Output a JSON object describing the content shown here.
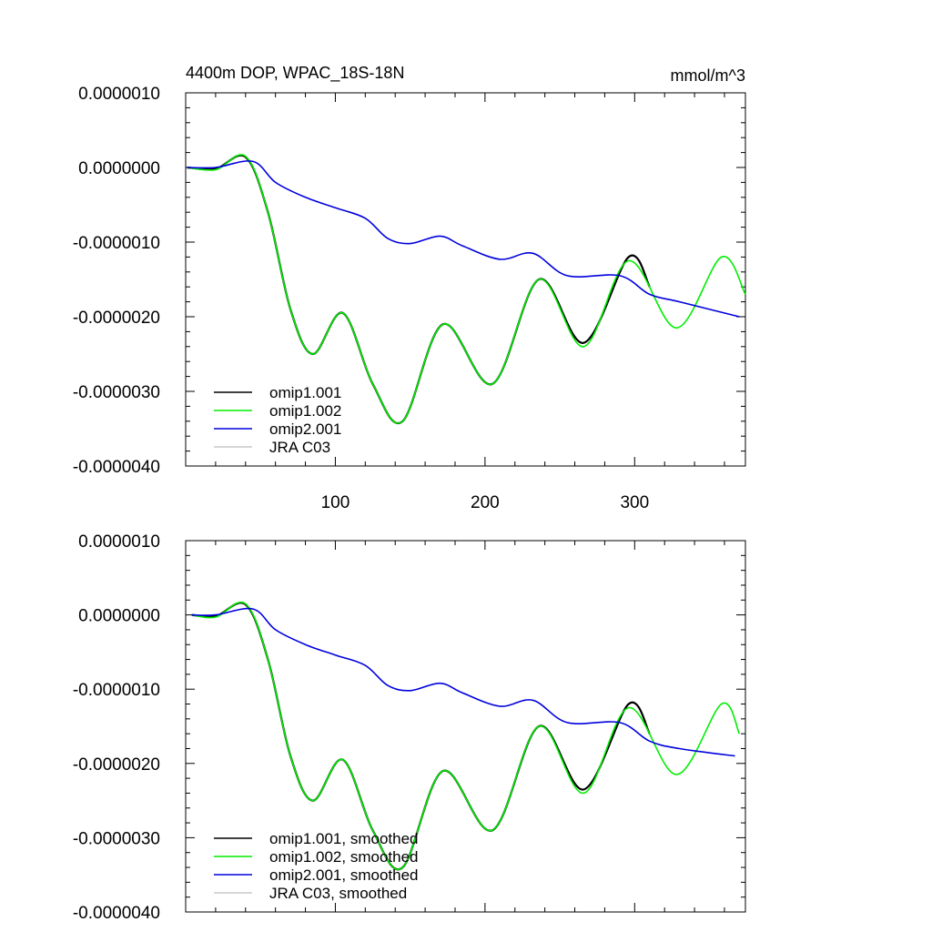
{
  "chart_data": [
    {
      "type": "line",
      "title": "4400m DOP, WPAC_18S-18N",
      "units": "mmol/m^3",
      "xlabel": "",
      "ylabel": "",
      "xlim": [
        0,
        374
      ],
      "ylim": [
        -4e-06,
        1e-06
      ],
      "xticks": [
        100,
        200,
        300
      ],
      "xtick_labels": [
        "100",
        "200",
        "300"
      ],
      "yticks": [
        1e-06,
        0,
        -1e-06,
        -2e-06,
        -3e-06,
        -4e-06
      ],
      "ytick_labels": [
        "0.0000010",
        "0.0000000",
        "-0.0000010",
        "-0.0000020",
        "-0.0000030",
        "-0.0000040"
      ],
      "legend": [
        "omip1.001",
        "omip1.002",
        "omip2.001",
        "JRA C03"
      ],
      "legend_position": "bottom-left",
      "series": [
        {
          "name": "omip1.001",
          "color": "#000000",
          "x": [
            1,
            20,
            40,
            55,
            70,
            85,
            105,
            125,
            145,
            172,
            205,
            236,
            266,
            296,
            310
          ],
          "y": [
            0,
            -2e-08,
            1.4e-07,
            -6e-07,
            -1.9e-06,
            -2.5e-06,
            -1.95e-06,
            -2.9e-06,
            -3.4e-06,
            -2.1e-06,
            -2.9e-06,
            -1.5e-06,
            -2.35e-06,
            -1.2e-06,
            -1.6e-06
          ]
        },
        {
          "name": "omip1.002",
          "color": "#00ee00",
          "x": [
            1,
            20,
            40,
            55,
            70,
            85,
            105,
            125,
            145,
            172,
            205,
            236,
            266,
            296,
            328,
            358,
            374
          ],
          "y": [
            0,
            -3e-08,
            1.5e-07,
            -6e-07,
            -1.9e-06,
            -2.5e-06,
            -1.95e-06,
            -2.9e-06,
            -3.4e-06,
            -2.1e-06,
            -2.9e-06,
            -1.5e-06,
            -2.4e-06,
            -1.25e-06,
            -2.15e-06,
            -1.2e-06,
            -1.7e-06
          ]
        },
        {
          "name": "omip2.001",
          "color": "#0000dd",
          "x": [
            1,
            20,
            45,
            60,
            80,
            100,
            120,
            135,
            150,
            170,
            185,
            210,
            232,
            255,
            290,
            310,
            330,
            370
          ],
          "y": [
            0,
            0,
            8e-08,
            -2e-07,
            -4e-07,
            -5.4e-07,
            -6.8e-07,
            -9.5e-07,
            -1.02e-06,
            -9.2e-07,
            -1.05e-06,
            -1.23e-06,
            -1.15e-06,
            -1.45e-06,
            -1.45e-06,
            -1.7e-06,
            -1.8e-06,
            -2e-06
          ]
        },
        {
          "name": "JRA C03",
          "color": "#c8c8c8",
          "x": [],
          "y": []
        }
      ]
    },
    {
      "type": "line",
      "title": "",
      "units": "",
      "xlabel": "",
      "ylabel": "",
      "xlim": [
        0,
        374
      ],
      "ylim": [
        -4e-06,
        1e-06
      ],
      "xticks": [
        100,
        200,
        300
      ],
      "xtick_labels": [],
      "yticks": [
        1e-06,
        0,
        -1e-06,
        -2e-06,
        -3e-06,
        -4e-06
      ],
      "ytick_labels": [
        "0.0000010",
        "0.0000000",
        "-0.0000010",
        "-0.0000020",
        "-0.0000030",
        "-0.0000040"
      ],
      "legend": [
        "omip1.001, smoothed",
        "omip1.002, smoothed",
        "omip2.001, smoothed",
        "JRA C03, smoothed"
      ],
      "legend_position": "bottom-left",
      "series": [
        {
          "name": "omip1.001, smoothed",
          "color": "#000000",
          "x": [
            4,
            20,
            40,
            55,
            70,
            85,
            105,
            125,
            145,
            172,
            205,
            236,
            266,
            296,
            310
          ],
          "y": [
            0,
            -2e-08,
            1.4e-07,
            -6e-07,
            -1.9e-06,
            -2.5e-06,
            -1.95e-06,
            -2.9e-06,
            -3.4e-06,
            -2.1e-06,
            -2.9e-06,
            -1.5e-06,
            -2.35e-06,
            -1.2e-06,
            -1.6e-06
          ]
        },
        {
          "name": "omip1.002, smoothed",
          "color": "#00ee00",
          "x": [
            4,
            20,
            40,
            55,
            70,
            85,
            105,
            125,
            145,
            172,
            205,
            236,
            266,
            296,
            328,
            358,
            370
          ],
          "y": [
            0,
            -3e-08,
            1.5e-07,
            -6e-07,
            -1.9e-06,
            -2.5e-06,
            -1.95e-06,
            -2.9e-06,
            -3.4e-06,
            -2.1e-06,
            -2.9e-06,
            -1.5e-06,
            -2.4e-06,
            -1.25e-06,
            -2.15e-06,
            -1.2e-06,
            -1.6e-06
          ]
        },
        {
          "name": "omip2.001, smoothed",
          "color": "#0000dd",
          "x": [
            4,
            20,
            45,
            60,
            80,
            100,
            120,
            135,
            150,
            170,
            185,
            210,
            232,
            255,
            290,
            310,
            330,
            367
          ],
          "y": [
            0,
            0,
            8e-08,
            -2e-07,
            -4e-07,
            -5.4e-07,
            -6.8e-07,
            -9.5e-07,
            -1.02e-06,
            -9.2e-07,
            -1.05e-06,
            -1.23e-06,
            -1.15e-06,
            -1.45e-06,
            -1.45e-06,
            -1.7e-06,
            -1.8e-06,
            -1.9e-06
          ]
        },
        {
          "name": "JRA C03, smoothed",
          "color": "#c8c8c8",
          "x": [],
          "y": []
        }
      ]
    }
  ]
}
